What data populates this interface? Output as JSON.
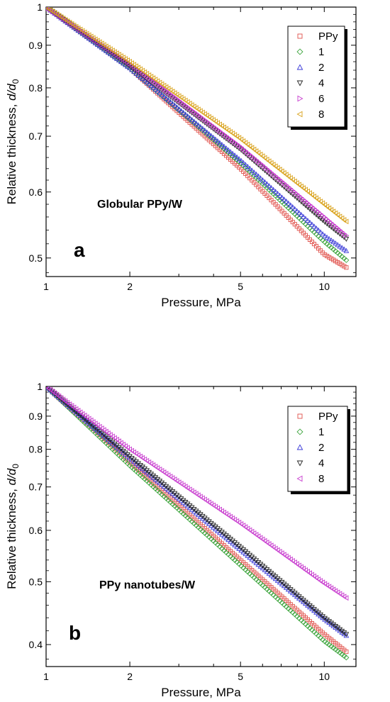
{
  "chart_data": [
    {
      "type": "scatter",
      "panel_label": "a",
      "annotation": "Globular PPy/W",
      "xlabel": "Pressure, MPa",
      "ylabel_main": "Relative thickness, ",
      "ylabel_var": "d/d",
      "ylabel_sub": "0",
      "x_scale": "log",
      "y_scale": "log",
      "xlim": [
        1,
        13
      ],
      "ylim": [
        0.475,
        1.0
      ],
      "x_ticks": [
        1,
        2,
        5,
        10
      ],
      "x_tick_labels": [
        "1",
        "2",
        "5",
        "10"
      ],
      "y_ticks": [
        0.5,
        0.6,
        0.7,
        0.8,
        0.9,
        1
      ],
      "y_tick_labels": [
        "0.5",
        "0.6",
        "0.7",
        "0.8",
        "0.9",
        "1"
      ],
      "legend_position": "top-right",
      "series": [
        {
          "name": "PPy",
          "color": "#e0504a",
          "marker": "square",
          "x": [
            1,
            2,
            5,
            10,
            12
          ],
          "y": [
            1.0,
            0.845,
            0.64,
            0.505,
            0.487
          ]
        },
        {
          "name": "1",
          "color": "#3fa63f",
          "marker": "diamond",
          "x": [
            1,
            2,
            5,
            10,
            12
          ],
          "y": [
            1.0,
            0.845,
            0.65,
            0.523,
            0.497
          ]
        },
        {
          "name": "2",
          "color": "#3a3ad8",
          "marker": "triangle-up",
          "x": [
            1,
            2,
            5,
            10,
            12
          ],
          "y": [
            1.0,
            0.845,
            0.655,
            0.532,
            0.51
          ]
        },
        {
          "name": "4",
          "color": "#222222",
          "marker": "triangle-down",
          "x": [
            1,
            2,
            5,
            10,
            12
          ],
          "y": [
            1.0,
            0.85,
            0.675,
            0.553,
            0.527
          ]
        },
        {
          "name": "6",
          "color": "#c83ccf",
          "marker": "triangle-right",
          "x": [
            1,
            2,
            5,
            10,
            12
          ],
          "y": [
            1.0,
            0.855,
            0.68,
            0.56,
            0.532
          ]
        },
        {
          "name": "8",
          "color": "#d9a21b",
          "marker": "triangle-left",
          "x": [
            1,
            2,
            5,
            10,
            12
          ],
          "y": [
            1.0,
            0.86,
            0.695,
            0.58,
            0.553
          ]
        }
      ]
    },
    {
      "type": "scatter",
      "panel_label": "b",
      "annotation": "PPy nanotubes/W",
      "xlabel": "Pressure, MPa",
      "ylabel_main": "Relative thickness, ",
      "ylabel_var": "d/d",
      "ylabel_sub": "0",
      "x_scale": "log",
      "y_scale": "log",
      "xlim": [
        1,
        13
      ],
      "ylim": [
        0.37,
        1.0
      ],
      "x_ticks": [
        1,
        2,
        5,
        10
      ],
      "x_tick_labels": [
        "1",
        "2",
        "5",
        "10"
      ],
      "y_ticks": [
        0.4,
        0.5,
        0.6,
        0.7,
        0.8,
        0.9,
        1
      ],
      "y_tick_labels": [
        "0.4",
        "0.5",
        "0.6",
        "0.7",
        "0.8",
        "0.9",
        "1"
      ],
      "legend_position": "top-right",
      "series": [
        {
          "name": "PPy",
          "color": "#e0504a",
          "marker": "square",
          "x": [
            1,
            2,
            5,
            10,
            12
          ],
          "y": [
            1.0,
            0.765,
            0.54,
            0.415,
            0.39
          ]
        },
        {
          "name": "1",
          "color": "#3fa63f",
          "marker": "diamond",
          "x": [
            1,
            2,
            5,
            10,
            12
          ],
          "y": [
            1.0,
            0.755,
            0.53,
            0.405,
            0.382
          ]
        },
        {
          "name": "2",
          "color": "#3a3ad8",
          "marker": "triangle-up",
          "x": [
            1,
            2,
            5,
            10,
            12
          ],
          "y": [
            1.0,
            0.775,
            0.56,
            0.438,
            0.413
          ]
        },
        {
          "name": "4",
          "color": "#222222",
          "marker": "triangle-down",
          "x": [
            1,
            2,
            5,
            10,
            12
          ],
          "y": [
            1.0,
            0.78,
            0.565,
            0.44,
            0.415
          ]
        },
        {
          "name": "8",
          "color": "#c83ccf",
          "marker": "triangle-left",
          "x": [
            1,
            2,
            5,
            10,
            12
          ],
          "y": [
            1.0,
            0.8,
            0.615,
            0.497,
            0.472
          ]
        }
      ]
    }
  ]
}
